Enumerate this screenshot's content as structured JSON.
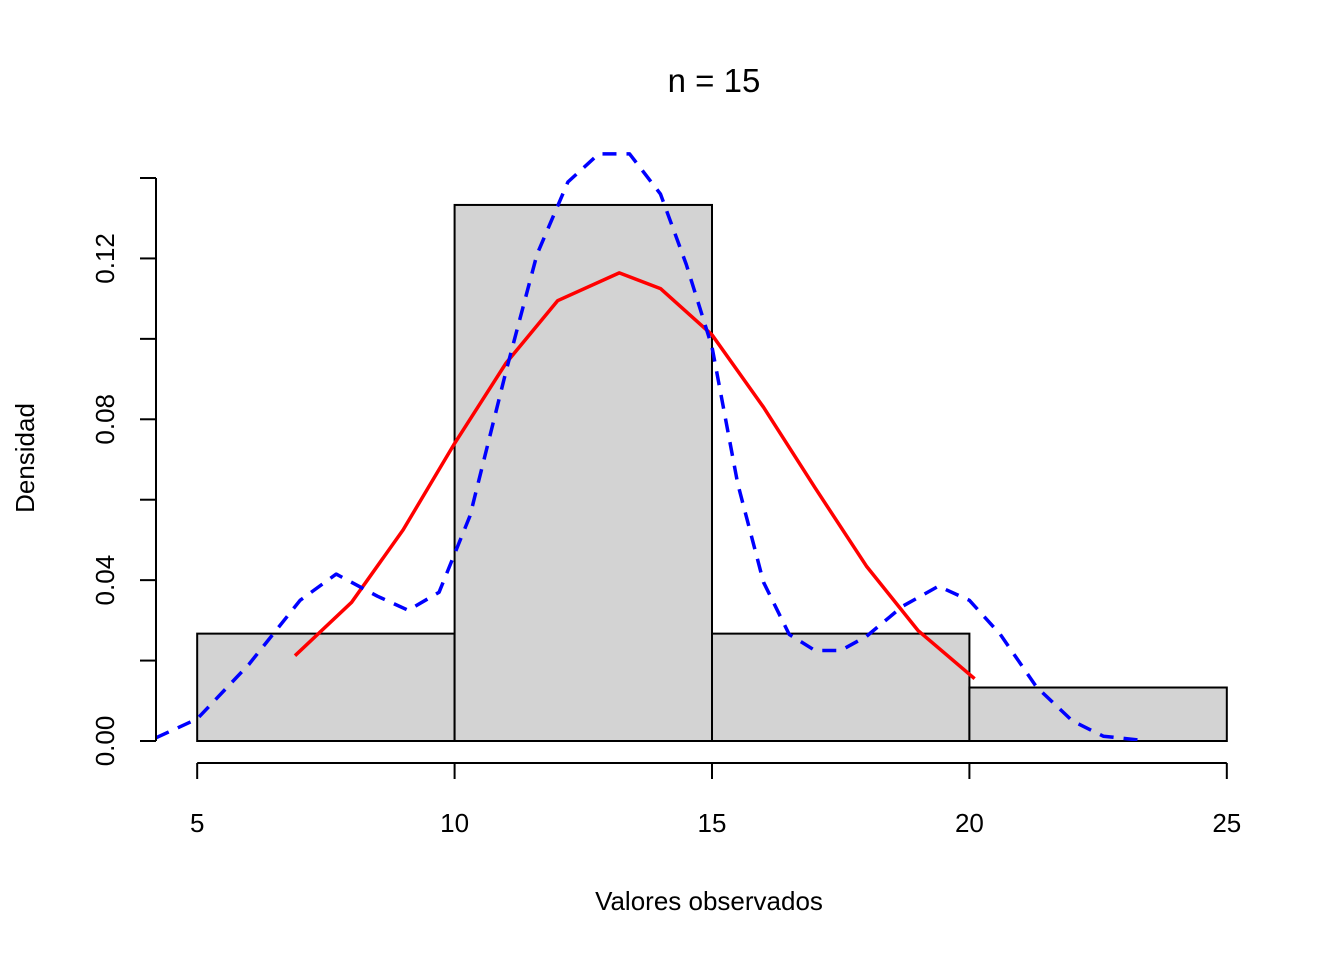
{
  "chart_data": {
    "type": "bar",
    "title": "n = 15",
    "xlabel": "Valores observados",
    "ylabel": "Densidad",
    "xlim": [
      4.2,
      25.8
    ],
    "ylim": [
      0,
      0.14
    ],
    "x_ticks": [
      5,
      10,
      15,
      20,
      25
    ],
    "y_ticks": [
      0,
      0.02,
      0.04,
      0.06,
      0.08,
      0.1,
      0.12,
      0.14
    ],
    "y_tick_labels": [
      {
        "value": 0,
        "label": "0.00"
      },
      {
        "value": 0.04,
        "label": "0.04"
      },
      {
        "value": 0.08,
        "label": "0.08"
      },
      {
        "value": 0.12,
        "label": "0.12"
      }
    ],
    "bins": [
      {
        "from": 5,
        "to": 10,
        "density": 0.0267
      },
      {
        "from": 10,
        "to": 15,
        "density": 0.1333
      },
      {
        "from": 15,
        "to": 20,
        "density": 0.0267
      },
      {
        "from": 20,
        "to": 25,
        "density": 0.0133
      }
    ],
    "series": [
      {
        "style": "solid",
        "color": "#ff0000",
        "points": [
          [
            6.9,
            0.0212
          ],
          [
            8.0,
            0.0345
          ],
          [
            9.0,
            0.0525
          ],
          [
            10.0,
            0.074
          ],
          [
            11.0,
            0.094
          ],
          [
            12.0,
            0.1095
          ],
          [
            13.2,
            0.1164
          ],
          [
            14.0,
            0.1125
          ],
          [
            15.0,
            0.101
          ],
          [
            16.0,
            0.083
          ],
          [
            17.0,
            0.063
          ],
          [
            18.0,
            0.0435
          ],
          [
            19.0,
            0.0275
          ],
          [
            20.1,
            0.0155
          ]
        ]
      },
      {
        "style": "dashed",
        "color": "#0000ff",
        "points": [
          [
            4.2,
            0.0008
          ],
          [
            5.0,
            0.0055
          ],
          [
            6.0,
            0.019
          ],
          [
            7.0,
            0.035
          ],
          [
            7.7,
            0.0415
          ],
          [
            8.5,
            0.036
          ],
          [
            9.1,
            0.0325
          ],
          [
            9.7,
            0.037
          ],
          [
            10.3,
            0.056
          ],
          [
            11.0,
            0.092
          ],
          [
            11.6,
            0.121
          ],
          [
            12.2,
            0.139
          ],
          [
            12.8,
            0.146
          ],
          [
            13.4,
            0.146
          ],
          [
            14.0,
            0.136
          ],
          [
            14.5,
            0.1185
          ],
          [
            15.0,
            0.098
          ],
          [
            15.5,
            0.064
          ],
          [
            16.0,
            0.0395
          ],
          [
            16.5,
            0.0265
          ],
          [
            17.0,
            0.0225
          ],
          [
            17.5,
            0.0225
          ],
          [
            18.0,
            0.026
          ],
          [
            18.7,
            0.0335
          ],
          [
            19.4,
            0.0385
          ],
          [
            20.0,
            0.035
          ],
          [
            20.6,
            0.0265
          ],
          [
            21.3,
            0.0135
          ],
          [
            22.0,
            0.005
          ],
          [
            22.6,
            0.0012
          ],
          [
            23.4,
            0.0001
          ]
        ]
      }
    ],
    "colors": {
      "bar_fill": "#d3d3d3",
      "bar_stroke": "#000000"
    }
  }
}
